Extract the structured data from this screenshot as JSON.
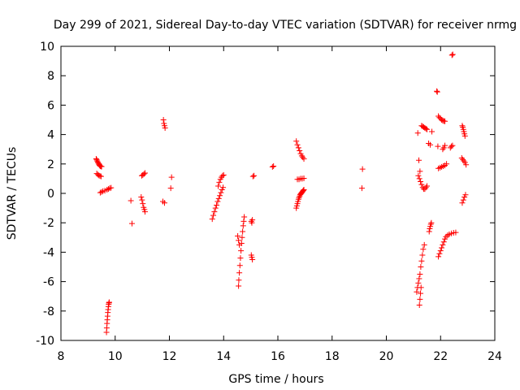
{
  "chart_data": {
    "type": "scatter",
    "title": "Day 299 of 2021, Sidereal Day-to-day VTEC variation (SDTVAR) for receiver nrmg",
    "xlabel": "GPS time / hours",
    "ylabel": "SDTVAR / TECUs",
    "xlim": [
      8,
      24
    ],
    "ylim": [
      -10,
      10
    ],
    "xticks": [
      8,
      10,
      12,
      14,
      16,
      18,
      20,
      22,
      24
    ],
    "yticks": [
      -10,
      -8,
      -6,
      -4,
      -2,
      0,
      2,
      4,
      6,
      8,
      10
    ],
    "xtick_labels": [
      "8",
      "10",
      "12",
      "14",
      "16",
      "18",
      "20",
      "22",
      "24"
    ],
    "ytick_labels": [
      "-10",
      "-8",
      "-6",
      "-4",
      "-2",
      "0",
      "2",
      "4",
      "6",
      "8",
      "10"
    ],
    "grid": false,
    "marker": "+",
    "marker_color": "#ff0000",
    "series": [
      {
        "name": "arc-9.4-upper",
        "x": [
          9.3,
          9.32,
          9.34,
          9.36,
          9.38,
          9.4,
          9.42,
          9.44,
          9.46,
          9.48,
          9.5
        ],
        "y": [
          2.35,
          2.28,
          2.2,
          2.12,
          2.05,
          1.98,
          1.92,
          1.88,
          1.85,
          1.83,
          1.82
        ]
      },
      {
        "name": "arc-9.4-lower",
        "x": [
          9.32,
          9.36,
          9.4,
          9.44,
          9.48
        ],
        "y": [
          1.35,
          1.28,
          1.22,
          1.18,
          1.15
        ]
      },
      {
        "name": "arc-9.6",
        "x": [
          9.45,
          9.5,
          9.55,
          9.62,
          9.7,
          9.75,
          9.8,
          9.85
        ],
        "y": [
          0.05,
          0.1,
          0.15,
          0.18,
          0.25,
          0.3,
          0.35,
          0.38
        ]
      },
      {
        "name": "arc-9.75-drop",
        "x": [
          9.68,
          9.69,
          9.7,
          9.71,
          9.72,
          9.73,
          9.74,
          9.75,
          9.76,
          9.77,
          9.78
        ],
        "y": [
          -9.45,
          -9.15,
          -8.85,
          -8.6,
          -8.35,
          -8.1,
          -7.9,
          -7.7,
          -7.55,
          -7.45,
          -7.4
        ]
      },
      {
        "name": "isolated-10.6",
        "x": [
          10.58,
          10.62
        ],
        "y": [
          -0.5,
          -2.05
        ]
      },
      {
        "name": "arc-11.0",
        "x": [
          10.98,
          11.02,
          11.06,
          11.1
        ],
        "y": [
          1.2,
          1.25,
          1.32,
          1.38
        ]
      },
      {
        "name": "arc-11.05",
        "x": [
          10.96,
          10.99,
          11.02,
          11.05,
          11.08,
          11.1
        ],
        "y": [
          -0.25,
          -0.45,
          -0.7,
          -0.95,
          -1.1,
          -1.25
        ]
      },
      {
        "name": "arc-11.8",
        "x": [
          11.78,
          11.8,
          11.82,
          11.84
        ],
        "y": [
          5.0,
          4.75,
          4.6,
          4.45
        ]
      },
      {
        "name": "arc-11.8-low",
        "x": [
          11.76,
          11.82
        ],
        "y": [
          -0.55,
          -0.65
        ]
      },
      {
        "name": "isolated-12.05",
        "x": [
          12.05,
          12.08
        ],
        "y": [
          0.35,
          1.1
        ]
      },
      {
        "name": "arc-13.6-rise",
        "x": [
          13.58,
          13.62,
          13.66,
          13.7,
          13.74,
          13.78,
          13.82,
          13.86,
          13.9,
          13.94,
          13.98
        ],
        "y": [
          -1.75,
          -1.5,
          -1.25,
          -1.0,
          -0.8,
          -0.55,
          -0.35,
          -0.15,
          0.05,
          0.25,
          0.4
        ]
      },
      {
        "name": "arc-13.9-upper",
        "x": [
          13.8,
          13.84,
          13.88,
          13.92,
          13.96,
          14.0
        ],
        "y": [
          0.5,
          0.75,
          0.95,
          1.1,
          1.2,
          1.25
        ]
      },
      {
        "name": "arc-14.6-drop",
        "x": [
          14.55,
          14.56,
          14.58,
          14.6,
          14.62,
          14.64,
          14.66,
          14.68,
          14.7,
          14.72,
          14.74,
          14.76
        ],
        "y": [
          -6.3,
          -5.9,
          -5.4,
          -4.9,
          -4.4,
          -3.9,
          -3.4,
          -3.0,
          -2.6,
          -2.2,
          -1.9,
          -1.6
        ]
      },
      {
        "name": "arc-14.6-side",
        "x": [
          14.52,
          14.55,
          14.58
        ],
        "y": [
          -2.9,
          -3.2,
          -3.5
        ]
      },
      {
        "name": "arc-15.0-a",
        "x": [
          15.02,
          15.04,
          15.06
        ],
        "y": [
          -1.9,
          -2.0,
          -1.8
        ]
      },
      {
        "name": "arc-15.0-b",
        "x": [
          15.02,
          15.04,
          15.06
        ],
        "y": [
          -4.2,
          -4.35,
          -4.5
        ]
      },
      {
        "name": "arc-15.1",
        "x": [
          15.08,
          15.12
        ],
        "y": [
          1.15,
          1.2
        ]
      },
      {
        "name": "arc-15.8",
        "x": [
          15.8,
          15.84
        ],
        "y": [
          1.8,
          1.85
        ]
      },
      {
        "name": "arc-16.7-low",
        "x": [
          16.68,
          16.7,
          16.72,
          16.74,
          16.76,
          16.78,
          16.8,
          16.82,
          16.84,
          16.86,
          16.88,
          16.9,
          16.92,
          16.94,
          16.96
        ],
        "y": [
          -1.0,
          -0.85,
          -0.7,
          -0.55,
          -0.4,
          -0.3,
          -0.2,
          -0.1,
          -0.05,
          0.0,
          0.05,
          0.1,
          0.15,
          0.2,
          0.25
        ]
      },
      {
        "name": "arc-16.8-high",
        "x": [
          16.68,
          16.72,
          16.76,
          16.8,
          16.84,
          16.88,
          16.92,
          16.96
        ],
        "y": [
          3.55,
          3.3,
          3.1,
          2.9,
          2.7,
          2.55,
          2.45,
          2.35
        ]
      },
      {
        "name": "arc-16.8-mid",
        "x": [
          16.72,
          16.78,
          16.84,
          16.9,
          16.96
        ],
        "y": [
          0.95,
          0.95,
          1.0,
          1.0,
          1.02
        ]
      },
      {
        "name": "isolated-19.1",
        "x": [
          19.1,
          19.12
        ],
        "y": [
          0.35,
          1.65
        ]
      },
      {
        "name": "arc-21.2-drop",
        "x": [
          21.12,
          21.15,
          21.18,
          21.21,
          21.24,
          21.27,
          21.3,
          21.33,
          21.36,
          21.4
        ],
        "y": [
          -6.7,
          -6.4,
          -6.1,
          -5.8,
          -5.5,
          -5.0,
          -4.6,
          -4.2,
          -3.8,
          -3.5
        ]
      },
      {
        "name": "arc-21.25-deep",
        "x": [
          21.22,
          21.24,
          21.26,
          21.28
        ],
        "y": [
          -7.6,
          -7.2,
          -6.8,
          -6.4
        ]
      },
      {
        "name": "arc-21.3-mid",
        "x": [
          21.18,
          21.22,
          21.26,
          21.3,
          21.34,
          21.38,
          21.42,
          21.46,
          21.5
        ],
        "y": [
          1.2,
          1.0,
          0.8,
          0.6,
          0.4,
          0.3,
          0.3,
          0.4,
          0.5
        ]
      },
      {
        "name": "arc-21.35-upper",
        "x": [
          21.3,
          21.34,
          21.38,
          21.42,
          21.46,
          21.5
        ],
        "y": [
          4.6,
          4.55,
          4.5,
          4.45,
          4.4,
          4.35
        ]
      },
      {
        "name": "arc-21.2-misc",
        "x": [
          21.16,
          21.2,
          21.24
        ],
        "y": [
          4.1,
          2.25,
          1.5
        ]
      },
      {
        "name": "arc-21.6",
        "x": [
          21.58,
          21.6,
          21.62,
          21.64,
          21.66
        ],
        "y": [
          -2.6,
          -2.4,
          -2.25,
          -2.1,
          -2.0
        ]
      },
      {
        "name": "arc-21.6-upper",
        "x": [
          21.56,
          21.62,
          21.68
        ],
        "y": [
          3.4,
          3.3,
          4.2
        ]
      },
      {
        "name": "arc-21.8-top",
        "x": [
          21.86,
          21.88
        ],
        "y": [
          6.95,
          6.9
        ]
      },
      {
        "name": "arc-22.0-high",
        "x": [
          21.92,
          21.96,
          22.0,
          22.04,
          22.08,
          22.12,
          22.16
        ],
        "y": [
          5.25,
          5.15,
          5.08,
          5.0,
          4.95,
          4.92,
          4.9
        ]
      },
      {
        "name": "arc-22.1-drop",
        "x": [
          21.92,
          21.96,
          22.0,
          22.04,
          22.08,
          22.12,
          22.16,
          22.2,
          22.26,
          22.32,
          22.4,
          22.48,
          22.56
        ],
        "y": [
          -4.3,
          -4.1,
          -3.9,
          -3.7,
          -3.5,
          -3.3,
          -3.1,
          -2.95,
          -2.85,
          -2.78,
          -2.72,
          -2.68,
          -2.66
        ]
      },
      {
        "name": "arc-22.0-mid",
        "x": [
          21.92,
          21.98,
          22.04,
          22.1,
          22.16,
          22.22
        ],
        "y": [
          1.7,
          1.75,
          1.8,
          1.85,
          1.9,
          2.0
        ]
      },
      {
        "name": "arc-22.15-upper",
        "x": [
          21.9,
          22.08,
          22.12,
          22.16
        ],
        "y": [
          3.2,
          3.0,
          3.1,
          3.25
        ]
      },
      {
        "name": "isolated-22.4",
        "x": [
          22.42,
          22.45
        ],
        "y": [
          9.4,
          9.45
        ]
      },
      {
        "name": "arc-22.4",
        "x": [
          22.36,
          22.4,
          22.44
        ],
        "y": [
          3.1,
          3.2,
          3.25
        ]
      },
      {
        "name": "arc-22.9-high",
        "x": [
          22.8,
          22.82,
          22.84,
          22.86,
          22.88,
          22.9
        ],
        "y": [
          4.6,
          4.5,
          4.35,
          4.2,
          4.05,
          3.9
        ]
      },
      {
        "name": "arc-22.9-mid",
        "x": [
          22.78,
          22.82,
          22.86,
          22.9,
          22.94
        ],
        "y": [
          2.4,
          2.3,
          2.2,
          2.1,
          1.95
        ]
      },
      {
        "name": "arc-22.9-low",
        "x": [
          22.8,
          22.84,
          22.88,
          22.92
        ],
        "y": [
          -0.65,
          -0.45,
          -0.25,
          -0.1
        ]
      }
    ]
  }
}
